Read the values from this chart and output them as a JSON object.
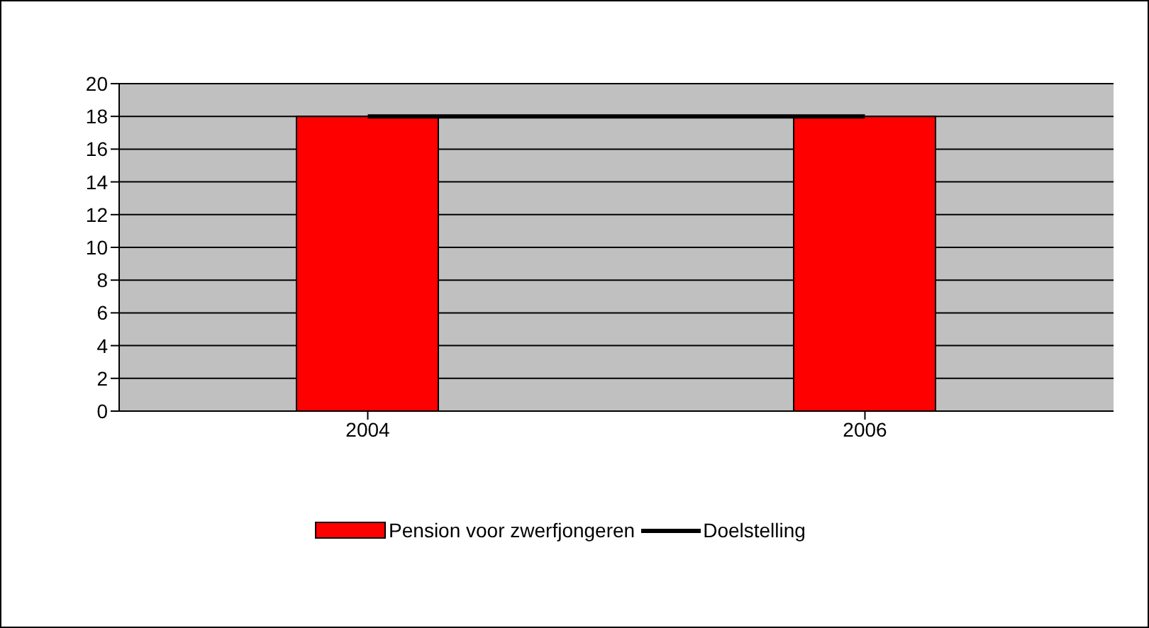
{
  "chart_data": {
    "type": "bar",
    "categories": [
      "2004",
      "2006"
    ],
    "series": [
      {
        "name": "Pension voor zwerfjongeren",
        "color": "#ff0000",
        "values": [
          18,
          18
        ]
      },
      {
        "name": "Doelstelling",
        "type": "line",
        "color": "#000000",
        "values": [
          18,
          18
        ]
      }
    ],
    "ylim": [
      0,
      20
    ],
    "yticks": [
      0,
      2,
      4,
      6,
      8,
      10,
      12,
      14,
      16,
      18,
      20
    ],
    "grid": "y",
    "legend": "bottom",
    "marker": "none",
    "line_style": "solid"
  }
}
